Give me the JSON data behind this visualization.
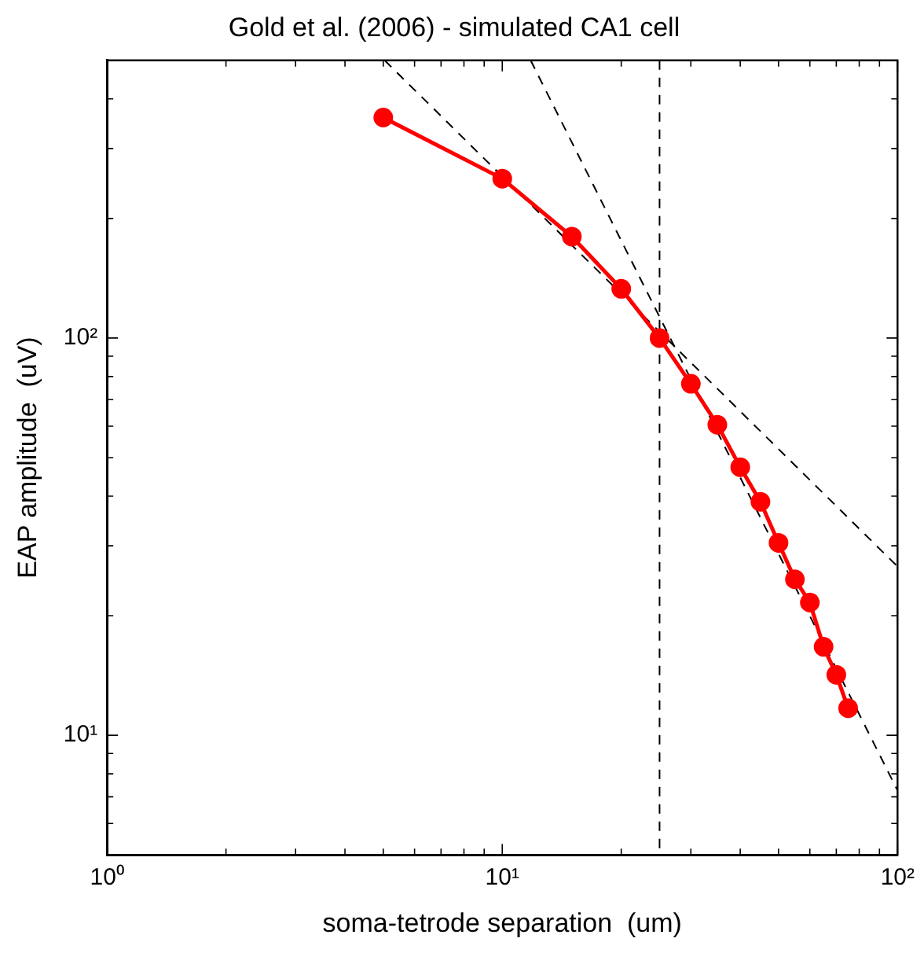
{
  "chart_data": {
    "type": "line",
    "title": "Gold et al. (2006) - simulated CA1 cell",
    "xlabel": "soma-tetrode separation  (um)",
    "ylabel": "EAP amplitude  (uV)",
    "log": "xy",
    "grid": false,
    "legend": false,
    "marker": "circle",
    "line_style": "solid",
    "x": [
      5,
      10,
      15,
      20,
      25,
      30,
      35,
      40,
      45,
      50,
      55,
      60,
      65,
      70,
      75
    ],
    "series": [
      {
        "color": "#ff0000",
        "values": [
          359,
          252,
          180,
          133,
          100,
          76.7,
          60.5,
          47.3,
          38.7,
          30.5,
          24.7,
          21.6,
          16.7,
          14.2,
          11.7
        ]
      },
      {
        "type": "line",
        "color": "#000000",
        "x": [
          5.04,
          100
        ],
        "values": [
          500,
          26.6
        ],
        "marker": "none",
        "line_style": "dashed"
      },
      {
        "type": "line",
        "color": "#000000",
        "x": [
          11.8,
          100
        ],
        "values": [
          500,
          7.26
        ],
        "marker": "none",
        "line_style": "dashed"
      }
    ],
    "ref_lines": [
      {
        "axis": "x",
        "value": 25,
        "color": "#000000",
        "line_style": "dashed"
      }
    ],
    "xlim": [
      1,
      100
    ],
    "ylim": [
      5,
      500
    ],
    "xticks": [
      {
        "value": 1,
        "label": "10⁰"
      },
      {
        "value": 2,
        "label": null
      },
      {
        "value": 3,
        "label": null
      },
      {
        "value": 4,
        "label": null
      },
      {
        "value": 5,
        "label": null
      },
      {
        "value": 6,
        "label": null
      },
      {
        "value": 7,
        "label": null
      },
      {
        "value": 8,
        "label": null
      },
      {
        "value": 9,
        "label": null
      },
      {
        "value": 10,
        "label": "10¹"
      },
      {
        "value": 20,
        "label": null
      },
      {
        "value": 30,
        "label": null
      },
      {
        "value": 40,
        "label": null
      },
      {
        "value": 50,
        "label": null
      },
      {
        "value": 60,
        "label": null
      },
      {
        "value": 70,
        "label": null
      },
      {
        "value": 80,
        "label": null
      },
      {
        "value": 90,
        "label": null
      },
      {
        "value": 100,
        "label": "10²"
      }
    ],
    "yticks": [
      {
        "value": 5,
        "label": null
      },
      {
        "value": 6,
        "label": null
      },
      {
        "value": 7,
        "label": null
      },
      {
        "value": 8,
        "label": null
      },
      {
        "value": 9,
        "label": null
      },
      {
        "value": 10,
        "label": "10¹"
      },
      {
        "value": 20,
        "label": null
      },
      {
        "value": 30,
        "label": null
      },
      {
        "value": 40,
        "label": null
      },
      {
        "value": 50,
        "label": null
      },
      {
        "value": 60,
        "label": null
      },
      {
        "value": 70,
        "label": null
      },
      {
        "value": 80,
        "label": null
      },
      {
        "value": 90,
        "label": null
      },
      {
        "value": 100,
        "label": "10²"
      },
      {
        "value": 200,
        "label": null
      },
      {
        "value": 300,
        "label": null
      },
      {
        "value": 400,
        "label": null
      },
      {
        "value": 500,
        "label": null
      }
    ]
  }
}
